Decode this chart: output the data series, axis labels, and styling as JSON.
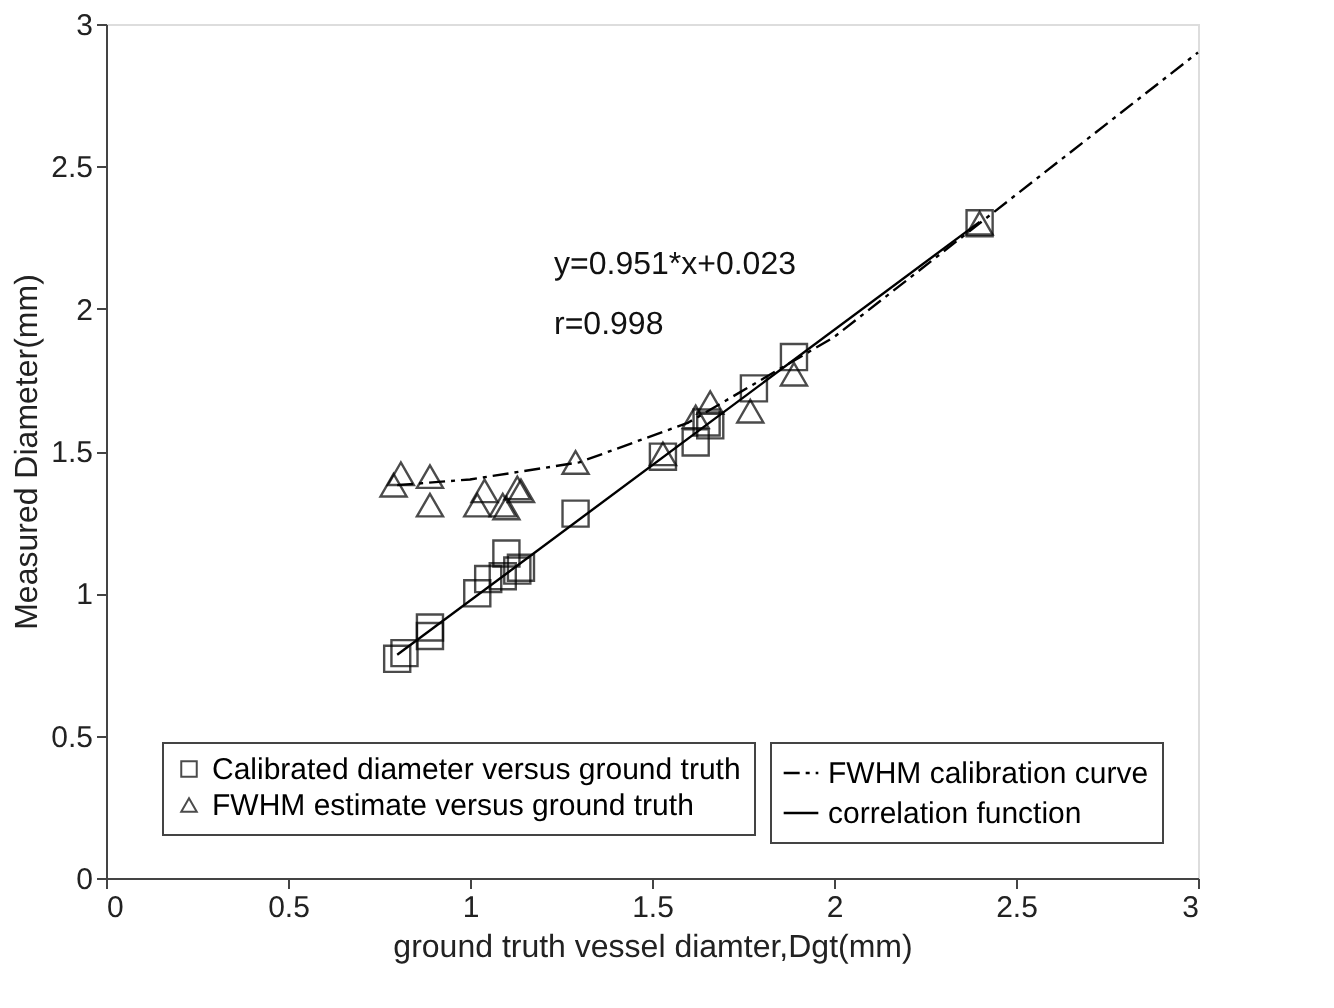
{
  "chart_data": {
    "type": "scatter",
    "xlabel": "ground truth vessel diamter,Dgt(mm)",
    "ylabel": "Measured Diameter(mm)",
    "xlim": [
      0,
      3
    ],
    "ylim": [
      0,
      3
    ],
    "xticks": [
      0,
      0.5,
      1,
      1.5,
      2,
      2.5,
      3
    ],
    "yticks": [
      0,
      0.5,
      1,
      1.5,
      2,
      2.5,
      3
    ],
    "grid": false,
    "legend": "bottom right",
    "annotations": [
      "y=0.951*x+0.023",
      "r=0.998"
    ],
    "series": [
      {
        "name": "Calibrated diameter versus ground truth",
        "marker": "square",
        "color": "#000000",
        "x": [
          0.8,
          0.82,
          0.89,
          0.89,
          1.02,
          1.05,
          1.09,
          1.1,
          1.13,
          1.14,
          1.29,
          1.53,
          1.62,
          1.65,
          1.66,
          1.78,
          1.89,
          2.4
        ],
        "values": [
          0.77,
          0.79,
          0.85,
          0.88,
          1.0,
          1.05,
          1.06,
          1.14,
          1.08,
          1.09,
          1.28,
          1.48,
          1.53,
          1.6,
          1.59,
          1.72,
          1.83,
          2.3
        ]
      },
      {
        "name": "FWHM estimate versus ground truth",
        "marker": "triangle",
        "color": "#000000",
        "x": [
          0.79,
          0.81,
          0.89,
          0.89,
          1.02,
          1.04,
          1.09,
          1.1,
          1.13,
          1.14,
          1.29,
          1.53,
          1.62,
          1.66,
          1.77,
          1.89,
          2.4
        ],
        "values": [
          1.38,
          1.42,
          1.41,
          1.31,
          1.31,
          1.36,
          1.31,
          1.3,
          1.37,
          1.36,
          1.46,
          1.49,
          1.62,
          1.67,
          1.64,
          1.77,
          2.3
        ]
      },
      {
        "name": "FWHM calibration curve",
        "type": "line",
        "line_style": "dashed",
        "color": "#000000",
        "x": [
          0.8,
          1.0,
          1.3,
          1.6,
          2.0,
          2.4,
          3.0
        ],
        "values": [
          1.38,
          1.4,
          1.46,
          1.6,
          1.9,
          2.3,
          2.9
        ]
      },
      {
        "name": "correlation function",
        "type": "line",
        "line_style": "solid",
        "color": "#000000",
        "x": [
          0.8,
          2.4
        ],
        "values": [
          0.784,
          2.305
        ]
      }
    ]
  }
}
